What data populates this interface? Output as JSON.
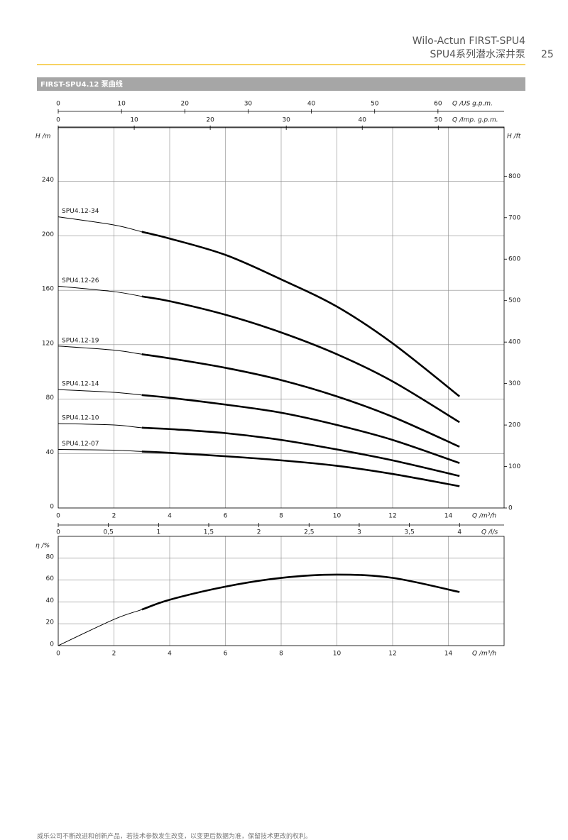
{
  "header": {
    "title": "Wilo-Actun FIRST-SPU4",
    "subtitle": "SPU4系列潜水深井泵",
    "page_number": "25"
  },
  "section_title": "FIRST-SPU4.12  泵曲线",
  "footer": "威乐公司不断改进和创新产品，若技术参数发生改变，以变更后数据为准，保留技术更改的权利。",
  "chart_data": [
    {
      "type": "line",
      "xlabel": "Q /m³/h",
      "ylabel": "H /m",
      "y2label": "H /ft",
      "xlim": [
        0,
        16
      ],
      "xticks": [
        0,
        2,
        4,
        6,
        8,
        10,
        12,
        14
      ],
      "ylim": [
        0,
        280
      ],
      "yticks": [
        0,
        40,
        80,
        120,
        160,
        200,
        240
      ],
      "y2lim": [
        0,
        918.6
      ],
      "y2ticks": [
        0,
        100,
        200,
        300,
        400,
        500,
        600,
        700,
        800
      ],
      "grid": true,
      "secondary_x_axes": [
        {
          "label": "Q /US g.p.m.",
          "position": "top",
          "lim": [
            0,
            70.45
          ],
          "ticks": [
            0,
            10,
            20,
            30,
            40,
            50,
            60
          ]
        },
        {
          "label": "Q /Imp. g.p.m.",
          "position": "top",
          "lim": [
            0,
            58.66
          ],
          "ticks": [
            0,
            10,
            20,
            30,
            40,
            50
          ]
        },
        {
          "label": "Q /l/s",
          "position": "bottom",
          "lim": [
            0,
            4.444
          ],
          "ticks": [
            0,
            {
              "value": 0.5,
              "label": "0,5"
            },
            1,
            {
              "value": 1.5,
              "label": "1,5"
            },
            2,
            {
              "value": 2.5,
              "label": "2,5"
            },
            3,
            {
              "value": 3.5,
              "label": "3,5"
            },
            4
          ]
        }
      ],
      "bold_from": 3,
      "x": [
        0,
        2,
        3,
        4,
        6,
        8,
        10,
        12,
        14.4
      ],
      "series": [
        {
          "name": "SPU4.12-34",
          "color": "#000000",
          "values": [
            214,
            208,
            203,
            198,
            186,
            168,
            148,
            121,
            82
          ]
        },
        {
          "name": "SPU4.12-26",
          "color": "#000000",
          "values": [
            163,
            159,
            155.5,
            152,
            142,
            129,
            113,
            93,
            63
          ]
        },
        {
          "name": "SPU4.12-19",
          "color": "#000000",
          "values": [
            119,
            116,
            113,
            110,
            103,
            94,
            82,
            67,
            45
          ]
        },
        {
          "name": "SPU4.12-14",
          "color": "#000000",
          "values": [
            87,
            85,
            83,
            81,
            76,
            70,
            61,
            50,
            33
          ]
        },
        {
          "name": "SPU4.12-10",
          "color": "#000000",
          "values": [
            62,
            61,
            59,
            58,
            55,
            50,
            43,
            35,
            23.5
          ]
        },
        {
          "name": "SPU4.12-07",
          "color": "#000000",
          "values": [
            43,
            42.5,
            41.5,
            40.5,
            38,
            35,
            31,
            25,
            16
          ]
        }
      ]
    },
    {
      "type": "line",
      "xlabel": "Q /m³/h",
      "ylabel": "η /%",
      "xlim": [
        0,
        16
      ],
      "xticks": [
        0,
        2,
        4,
        6,
        8,
        10,
        12,
        14
      ],
      "ylim": [
        0,
        100
      ],
      "yticks": [
        0,
        20,
        40,
        60,
        80
      ],
      "grid": true,
      "bold_from": 3,
      "x": [
        0,
        2,
        3,
        4,
        6,
        8,
        10,
        12,
        14.4
      ],
      "series": [
        {
          "color": "#000000",
          "values": [
            0,
            24,
            33,
            42,
            54,
            62,
            65,
            62,
            49
          ]
        }
      ]
    }
  ]
}
